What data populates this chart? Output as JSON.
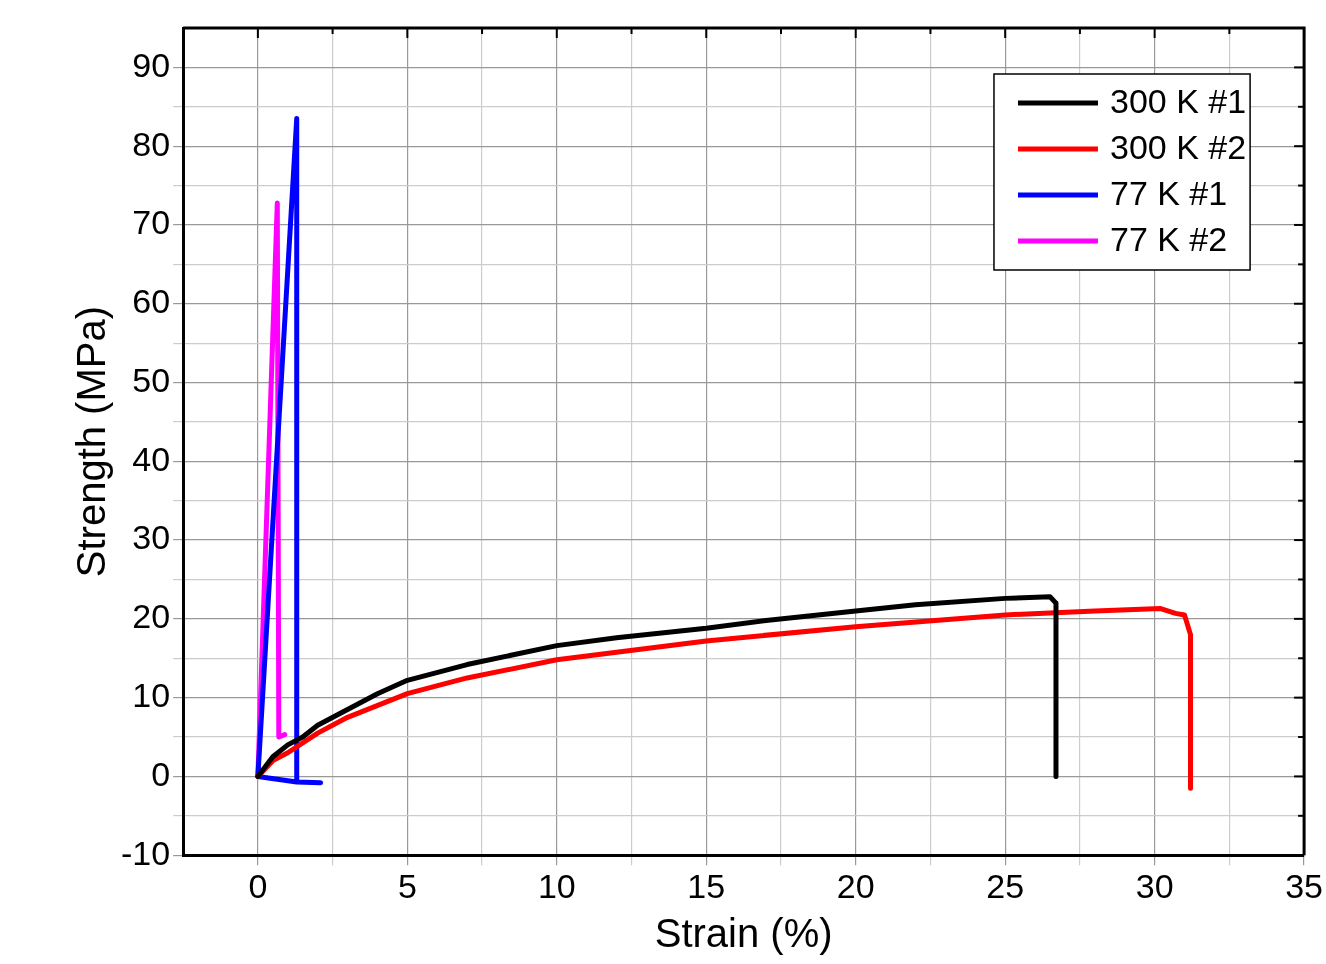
{
  "chart_data": {
    "type": "line",
    "xlabel": "Strain (%)",
    "ylabel": "Strength (MPa)",
    "xlim": [
      -2.5,
      35
    ],
    "ylim": [
      -10,
      95
    ],
    "xticks": [
      0,
      {
        "value": 2.5,
        "label": null
      },
      5,
      {
        "value": 7.5,
        "label": null
      },
      10,
      {
        "value": 12.5,
        "label": null
      },
      15,
      {
        "value": 17.5,
        "label": null
      },
      20,
      {
        "value": 22.5,
        "label": null
      },
      25,
      {
        "value": 27.5,
        "label": null
      },
      30,
      {
        "value": 32.5,
        "label": null
      },
      35
    ],
    "yticks": [
      -10,
      {
        "value": -5,
        "label": null
      },
      0,
      {
        "value": 5,
        "label": null
      },
      10,
      {
        "value": 15,
        "label": null
      },
      20,
      {
        "value": 25,
        "label": null
      },
      30,
      {
        "value": 35,
        "label": null
      },
      40,
      {
        "value": 45,
        "label": null
      },
      50,
      {
        "value": 55,
        "label": null
      },
      60,
      {
        "value": 65,
        "label": null
      },
      70,
      {
        "value": 75,
        "label": null
      },
      80,
      {
        "value": 85,
        "label": null
      },
      90
    ],
    "grid": true,
    "legend": "top right",
    "marker": "none",
    "line_style": "solid",
    "series": [
      {
        "name": "300 K #1",
        "color": "#000000",
        "x": [
          0,
          0.5,
          1,
          1.5,
          2,
          3,
          4,
          5,
          7,
          10,
          12,
          15,
          17,
          20,
          22,
          25,
          26.5,
          26.7,
          26.7
        ],
        "values": [
          0,
          2.5,
          4,
          5,
          6.5,
          8.5,
          10.5,
          12.2,
          14.2,
          16.6,
          17.6,
          18.8,
          19.8,
          21,
          21.8,
          22.6,
          22.8,
          22,
          0
        ]
      },
      {
        "name": "300 K #2",
        "color": "#ff0000",
        "x": [
          0,
          0.5,
          1,
          2,
          3,
          5,
          7,
          10,
          15,
          20,
          25,
          28,
          30.2,
          30.7,
          31,
          31.2,
          31.2
        ],
        "values": [
          0,
          2,
          3,
          5.5,
          7.5,
          10.5,
          12.5,
          14.8,
          17.2,
          19,
          20.5,
          21,
          21.3,
          20.7,
          20.5,
          18,
          -1.5
        ]
      },
      {
        "name": "77 K #1",
        "color": "#0000ff",
        "x": [
          2.1,
          1.3,
          0,
          1.3,
          1.3
        ],
        "values": [
          -0.8,
          -0.7,
          0,
          83.5,
          -0.7
        ]
      },
      {
        "name": "77 K #2",
        "color": "#ff00ff",
        "x": [
          0,
          0.65,
          0.7,
          0.9
        ],
        "values": [
          0,
          72.8,
          5,
          5.3
        ]
      }
    ]
  }
}
